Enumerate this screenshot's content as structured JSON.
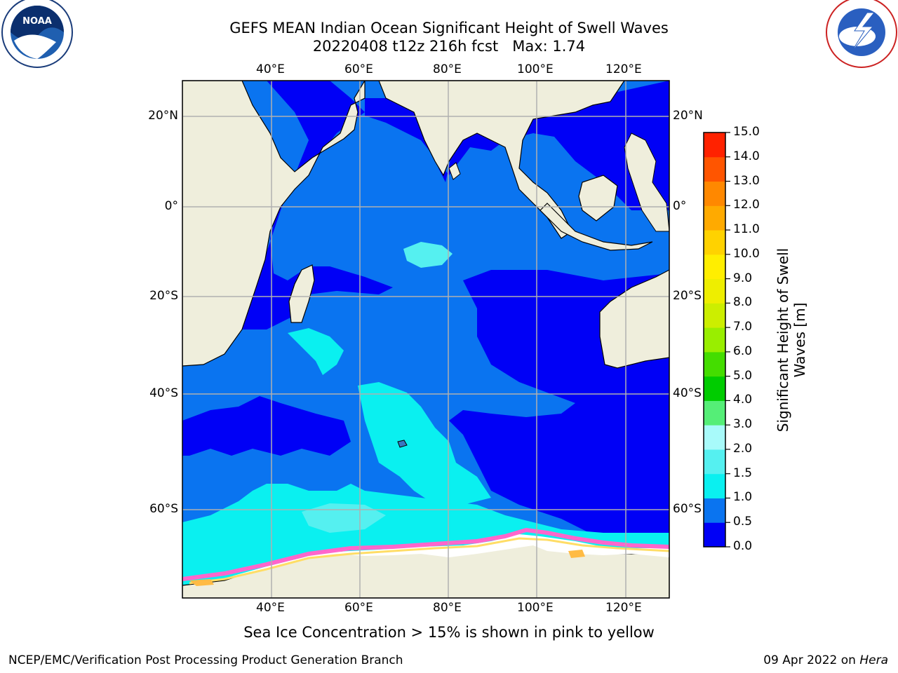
{
  "title": {
    "line1": "GEFS MEAN Indian Ocean Significant Height of Swell Waves",
    "line2": "20220408 t12z 216h fcst   Max: 1.74"
  },
  "map": {
    "lon_ticks": [
      "40°E",
      "60°E",
      "80°E",
      "100°E",
      "120°E"
    ],
    "lat_ticks_left": [
      "20°N",
      "0°",
      "20°S",
      "40°S",
      "60°S"
    ],
    "lat_ticks_right": [
      "20°N",
      "0°",
      "20°S",
      "40°S",
      "60°S"
    ],
    "extent": {
      "lon": [
        20,
        130
      ],
      "lat": [
        -70,
        28
      ]
    },
    "colors": {
      "land": "#efeedc",
      "ocean_0_0.5": "#0000f6",
      "ocean_0.5_1": "#0a74f0",
      "ocean_1_1.5": "#0af0f0",
      "ocean_1.5_2": "#55f0f0",
      "ice": "#ffffff",
      "ice_edge": "#ff66cc"
    }
  },
  "colorbar": {
    "label_line1": "Significant Height of Swell",
    "label_line2": "Waves [m]",
    "ticks": [
      "15.0",
      "14.0",
      "13.0",
      "12.0",
      "11.0",
      "10.0",
      "9.0",
      "8.0",
      "7.0",
      "6.0",
      "5.0",
      "4.0",
      "3.0",
      "2.0",
      "1.5",
      "1.0",
      "0.5",
      "0.0"
    ],
    "colors": [
      "#0000f6",
      "#0a74f0",
      "#0af0f0",
      "#55f0f0",
      "#a8fafa",
      "#55ee77",
      "#00cc00",
      "#44dd00",
      "#99ee00",
      "#ccee00",
      "#eeee00",
      "#ffee00",
      "#ffd200",
      "#ffaa00",
      "#ff8800",
      "#ff5500",
      "#ff2200",
      "#ff0000"
    ]
  },
  "logos": {
    "left": "NOAA",
    "right": "NATIONAL WEATHER SERVICE"
  },
  "caption": "Sea Ice Concentration > 15% is shown in pink to yellow",
  "footer": {
    "left": "NCEP/EMC/Verification Post Processing Product Generation Branch",
    "right_date": "09 Apr 2022 on ",
    "right_host": "Hera"
  }
}
